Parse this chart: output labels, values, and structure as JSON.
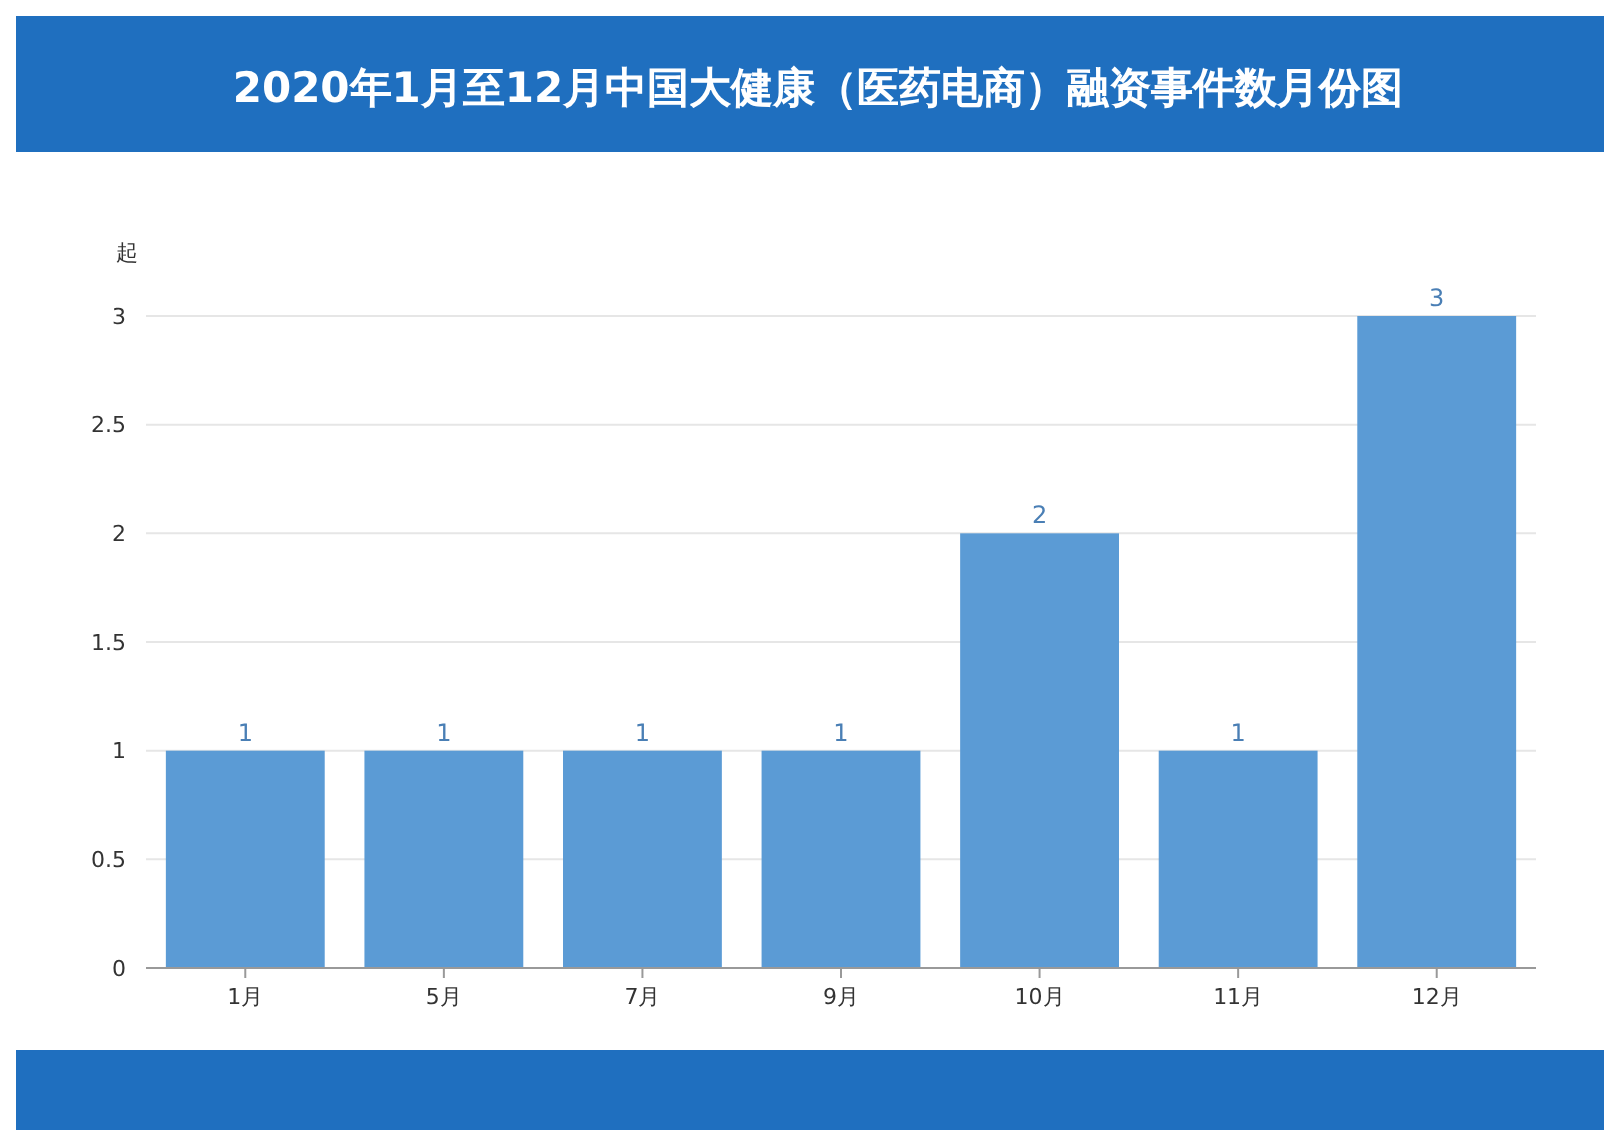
{
  "chart_data": {
    "type": "bar",
    "title": "2020年1月至12月中国大健康（医药电商）融资事件数月份图",
    "ylabel": "起",
    "categories": [
      "1月",
      "5月",
      "7月",
      "9月",
      "10月",
      "11月",
      "12月"
    ],
    "values": [
      1,
      1,
      1,
      1,
      2,
      1,
      3
    ],
    "color": "#5b9bd5",
    "ylim": [
      0,
      3
    ],
    "yticks": [
      0,
      0.5,
      1,
      1.5,
      2,
      2.5,
      3
    ],
    "grid": "y",
    "data_labels": true
  }
}
